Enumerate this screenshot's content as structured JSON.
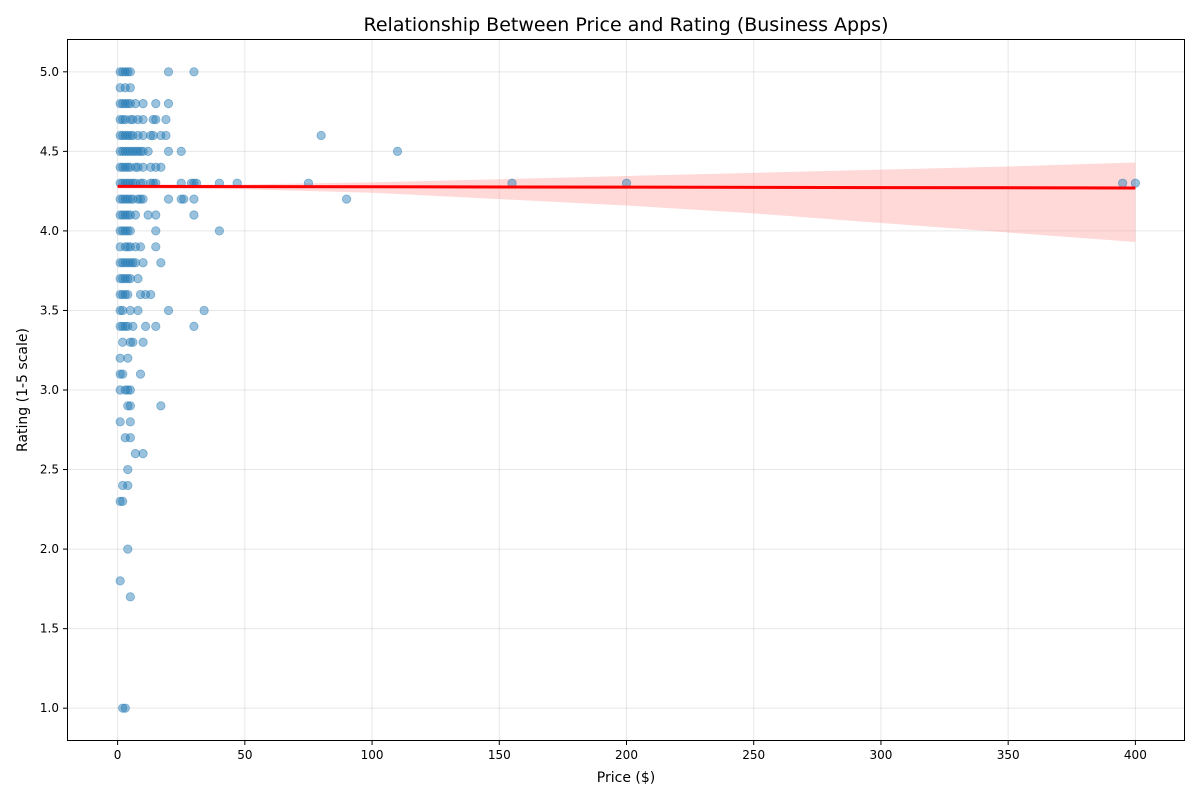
{
  "chart_data": {
    "type": "scatter",
    "title": "Relationship Between Price and Rating (Business Apps)",
    "xlabel": "Price ($)",
    "ylabel": "Rating (1-5 scale)",
    "xlim": [
      -19.5,
      419.5
    ],
    "ylim": [
      0.8,
      5.2
    ],
    "xticks": [
      0,
      50,
      100,
      150,
      200,
      250,
      300,
      350,
      400
    ],
    "yticks": [
      "1.0",
      "1.5",
      "2.0",
      "2.5",
      "3.0",
      "3.5",
      "4.0",
      "4.5",
      "5.0"
    ],
    "grid": true,
    "colors": {
      "points": "#1f77b4",
      "fit_line": "#ff0000",
      "confidence_band": "#ff9999"
    },
    "points": [
      [
        1,
        5.0
      ],
      [
        2,
        5.0
      ],
      [
        3,
        5.0
      ],
      [
        4,
        5.0
      ],
      [
        5,
        5.0
      ],
      [
        20,
        5.0
      ],
      [
        30,
        5.0
      ],
      [
        1,
        4.9
      ],
      [
        3,
        4.9
      ],
      [
        5,
        4.9
      ],
      [
        1,
        4.8
      ],
      [
        2,
        4.8
      ],
      [
        3,
        4.8
      ],
      [
        4,
        4.8
      ],
      [
        5,
        4.8
      ],
      [
        7,
        4.8
      ],
      [
        10,
        4.8
      ],
      [
        15,
        4.8
      ],
      [
        20,
        4.8
      ],
      [
        1,
        4.7
      ],
      [
        2,
        4.7
      ],
      [
        3,
        4.7
      ],
      [
        5,
        4.7
      ],
      [
        6,
        4.7
      ],
      [
        8,
        4.7
      ],
      [
        10,
        4.7
      ],
      [
        14,
        4.7
      ],
      [
        15,
        4.7
      ],
      [
        19,
        4.7
      ],
      [
        1,
        4.6
      ],
      [
        2,
        4.6
      ],
      [
        3,
        4.6
      ],
      [
        4,
        4.6
      ],
      [
        5,
        4.6
      ],
      [
        6,
        4.6
      ],
      [
        8,
        4.6
      ],
      [
        10,
        4.6
      ],
      [
        13,
        4.6
      ],
      [
        14,
        4.6
      ],
      [
        17,
        4.6
      ],
      [
        19,
        4.6
      ],
      [
        80,
        4.6
      ],
      [
        1,
        4.5
      ],
      [
        2,
        4.5
      ],
      [
        3,
        4.5
      ],
      [
        4,
        4.5
      ],
      [
        5,
        4.5
      ],
      [
        6,
        4.5
      ],
      [
        7,
        4.5
      ],
      [
        8,
        4.5
      ],
      [
        9,
        4.5
      ],
      [
        10,
        4.5
      ],
      [
        12,
        4.5
      ],
      [
        20,
        4.5
      ],
      [
        25,
        4.5
      ],
      [
        110,
        4.5
      ],
      [
        1,
        4.4
      ],
      [
        2,
        4.4
      ],
      [
        3,
        4.4
      ],
      [
        4,
        4.4
      ],
      [
        5,
        4.4
      ],
      [
        7,
        4.4
      ],
      [
        8,
        4.4
      ],
      [
        10,
        4.4
      ],
      [
        13,
        4.4
      ],
      [
        15,
        4.4
      ],
      [
        17,
        4.4
      ],
      [
        1,
        4.3
      ],
      [
        2,
        4.3
      ],
      [
        3,
        4.3
      ],
      [
        4,
        4.3
      ],
      [
        5,
        4.3
      ],
      [
        6,
        4.3
      ],
      [
        7,
        4.3
      ],
      [
        9,
        4.3
      ],
      [
        10,
        4.3
      ],
      [
        13,
        4.3
      ],
      [
        14,
        4.3
      ],
      [
        15,
        4.3
      ],
      [
        25,
        4.3
      ],
      [
        29,
        4.3
      ],
      [
        30,
        4.3
      ],
      [
        31,
        4.3
      ],
      [
        40,
        4.3
      ],
      [
        47,
        4.3
      ],
      [
        75,
        4.3
      ],
      [
        155,
        4.3
      ],
      [
        200,
        4.3
      ],
      [
        395,
        4.3
      ],
      [
        400,
        4.3
      ],
      [
        1,
        4.2
      ],
      [
        2,
        4.2
      ],
      [
        3,
        4.2
      ],
      [
        4,
        4.2
      ],
      [
        5,
        4.2
      ],
      [
        6,
        4.2
      ],
      [
        8,
        4.2
      ],
      [
        9,
        4.2
      ],
      [
        10,
        4.2
      ],
      [
        20,
        4.2
      ],
      [
        25,
        4.2
      ],
      [
        26,
        4.2
      ],
      [
        30,
        4.2
      ],
      [
        90,
        4.2
      ],
      [
        1,
        4.1
      ],
      [
        2,
        4.1
      ],
      [
        3,
        4.1
      ],
      [
        4,
        4.1
      ],
      [
        5,
        4.1
      ],
      [
        7,
        4.1
      ],
      [
        12,
        4.1
      ],
      [
        15,
        4.1
      ],
      [
        30,
        4.1
      ],
      [
        1,
        4.0
      ],
      [
        2,
        4.0
      ],
      [
        3,
        4.0
      ],
      [
        4,
        4.0
      ],
      [
        5,
        4.0
      ],
      [
        15,
        4.0
      ],
      [
        40,
        4.0
      ],
      [
        1,
        3.9
      ],
      [
        3,
        3.9
      ],
      [
        4,
        3.9
      ],
      [
        5,
        3.9
      ],
      [
        7,
        3.9
      ],
      [
        9,
        3.9
      ],
      [
        15,
        3.9
      ],
      [
        1,
        3.8
      ],
      [
        2,
        3.8
      ],
      [
        3,
        3.8
      ],
      [
        4,
        3.8
      ],
      [
        5,
        3.8
      ],
      [
        6,
        3.8
      ],
      [
        7,
        3.8
      ],
      [
        10,
        3.8
      ],
      [
        17,
        3.8
      ],
      [
        1,
        3.7
      ],
      [
        2,
        3.7
      ],
      [
        3,
        3.7
      ],
      [
        4,
        3.7
      ],
      [
        5,
        3.7
      ],
      [
        8,
        3.7
      ],
      [
        1,
        3.6
      ],
      [
        2,
        3.6
      ],
      [
        3,
        3.6
      ],
      [
        4,
        3.6
      ],
      [
        9,
        3.6
      ],
      [
        11,
        3.6
      ],
      [
        13,
        3.6
      ],
      [
        1,
        3.5
      ],
      [
        2,
        3.5
      ],
      [
        5,
        3.5
      ],
      [
        8,
        3.5
      ],
      [
        20,
        3.5
      ],
      [
        34,
        3.5
      ],
      [
        1,
        3.4
      ],
      [
        2,
        3.4
      ],
      [
        3,
        3.4
      ],
      [
        4,
        3.4
      ],
      [
        6,
        3.4
      ],
      [
        11,
        3.4
      ],
      [
        15,
        3.4
      ],
      [
        30,
        3.4
      ],
      [
        2,
        3.3
      ],
      [
        5,
        3.3
      ],
      [
        6,
        3.3
      ],
      [
        10,
        3.3
      ],
      [
        1,
        3.2
      ],
      [
        4,
        3.2
      ],
      [
        1,
        3.1
      ],
      [
        2,
        3.1
      ],
      [
        9,
        3.1
      ],
      [
        1,
        3.0
      ],
      [
        3,
        3.0
      ],
      [
        4,
        3.0
      ],
      [
        5,
        3.0
      ],
      [
        4,
        2.9
      ],
      [
        5,
        2.9
      ],
      [
        17,
        2.9
      ],
      [
        1,
        2.8
      ],
      [
        5,
        2.8
      ],
      [
        3,
        2.7
      ],
      [
        5,
        2.7
      ],
      [
        7,
        2.6
      ],
      [
        10,
        2.6
      ],
      [
        4,
        2.5
      ],
      [
        2,
        2.4
      ],
      [
        4,
        2.4
      ],
      [
        1,
        2.3
      ],
      [
        2,
        2.3
      ],
      [
        4,
        2.0
      ],
      [
        1,
        1.8
      ],
      [
        5,
        1.7
      ],
      [
        2,
        1.0
      ],
      [
        3,
        1.0
      ]
    ],
    "regression": {
      "x": [
        0,
        400
      ],
      "y": [
        4.28,
        4.27
      ]
    },
    "confidence_band": {
      "x": [
        0,
        50,
        100,
        150,
        200,
        250,
        300,
        350,
        400
      ],
      "lower": [
        4.267,
        4.262,
        4.24,
        4.2,
        4.16,
        4.11,
        4.05,
        3.99,
        3.93
      ],
      "upper": [
        4.29,
        4.292,
        4.305,
        4.325,
        4.345,
        4.365,
        4.385,
        4.405,
        4.43
      ]
    }
  }
}
